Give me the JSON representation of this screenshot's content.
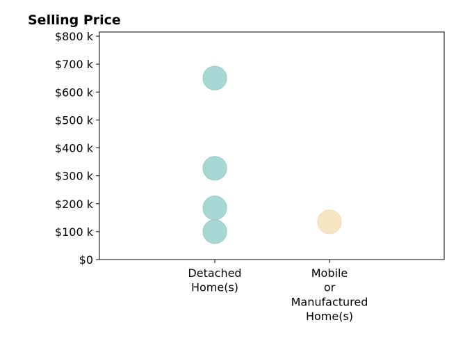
{
  "chart_data": {
    "type": "scatter",
    "title": "Selling Price",
    "xlabel": "",
    "ylabel": "",
    "categories": [
      [
        "Detached",
        "Home(s)"
      ],
      [
        "Mobile",
        "or",
        "Manufactured",
        "Home(s)"
      ]
    ],
    "ylim": [
      0,
      815000
    ],
    "yticks": [
      0,
      100000,
      200000,
      300000,
      400000,
      500000,
      600000,
      700000,
      800000
    ],
    "ytick_labels": [
      "$0",
      "$100 k",
      "$200 k",
      "$300 k",
      "$400 k",
      "$500 k",
      "$600 k",
      "$700 k",
      "$800 k"
    ],
    "grid": false,
    "series": [
      {
        "category": 0,
        "color": "#a8d8d3",
        "values": [
          650000,
          327000,
          185000,
          100000
        ]
      },
      {
        "category": 1,
        "color": "#f7e6c4",
        "values": [
          135000
        ]
      }
    ]
  }
}
